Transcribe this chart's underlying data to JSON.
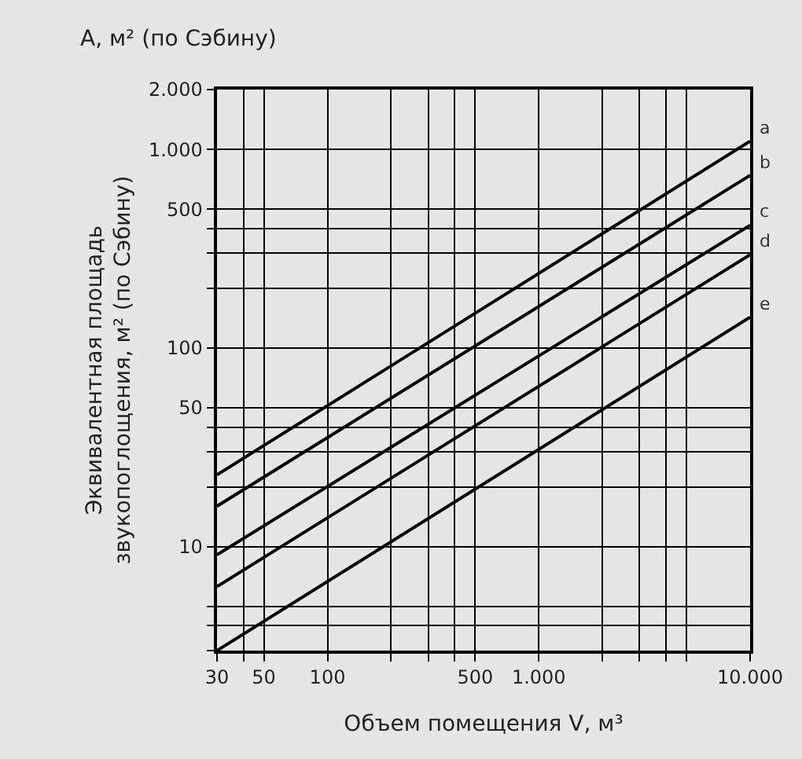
{
  "chart_data": {
    "type": "line",
    "title": "A, м² (по Сэбину)",
    "xlabel": "Объем помещения V, м³",
    "ylabel": "Эквивалентная площадь\nзвукопоглощения, м² (по Сэбину)",
    "log": "xy",
    "grid": true,
    "legend": false,
    "marker": "none",
    "line_style": "solid",
    "x": [
      30,
      10000
    ],
    "xlim": [
      30,
      10000
    ],
    "ylim": [
      3,
      2000
    ],
    "xticks": [
      30,
      {
        "value": 40,
        "label": null
      },
      50,
      100,
      {
        "value": 200,
        "label": null
      },
      {
        "value": 300,
        "label": null
      },
      {
        "value": 400,
        "label": null
      },
      500,
      {
        "value": 1000,
        "label": "1.000"
      },
      {
        "value": 2000,
        "label": null
      },
      {
        "value": 3000,
        "label": null
      },
      {
        "value": 4000,
        "label": null
      },
      {
        "value": 5000,
        "label": null
      },
      {
        "value": 10000,
        "label": "10.000"
      }
    ],
    "yticks": [
      {
        "value": 3,
        "label": null
      },
      {
        "value": 4,
        "label": null
      },
      {
        "value": 5,
        "label": null
      },
      10,
      {
        "value": 20,
        "label": null
      },
      {
        "value": 30,
        "label": null
      },
      {
        "value": 40,
        "label": null
      },
      50,
      100,
      {
        "value": 200,
        "label": null
      },
      {
        "value": 300,
        "label": null
      },
      {
        "value": 400,
        "label": null
      },
      500,
      {
        "value": 1000,
        "label": "1.000"
      },
      {
        "value": 2000,
        "label": "2.000"
      }
    ],
    "series": [
      {
        "name": "a",
        "color": "#000000",
        "values": [
          23,
          1100
        ]
      },
      {
        "name": "b",
        "color": "#000000",
        "values": [
          16,
          740
        ]
      },
      {
        "name": "c",
        "color": "#000000",
        "values": [
          9.1,
          415
        ]
      },
      {
        "name": "d",
        "color": "#000000",
        "values": [
          6.3,
          295
        ]
      },
      {
        "name": "e",
        "color": "#000000",
        "values": [
          3,
          143
        ]
      }
    ]
  }
}
